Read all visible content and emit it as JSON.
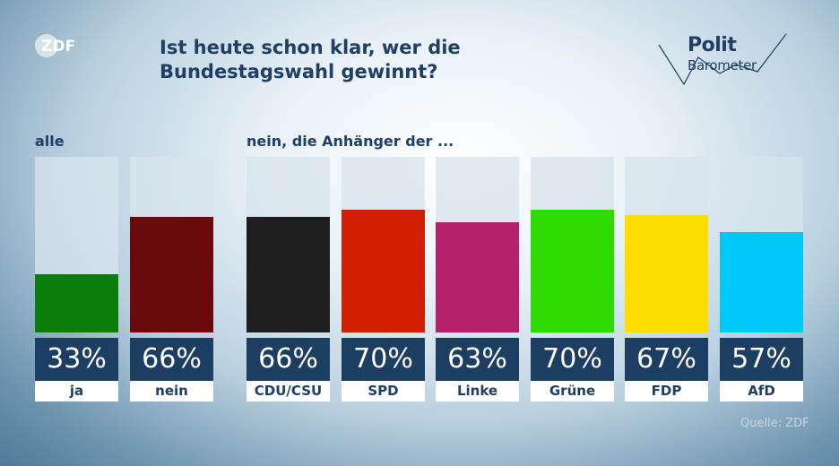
{
  "header": {
    "broadcaster_logo": "ZDF",
    "title": "Ist heute schon klar, wer die Bundestagswahl gewinnt?",
    "series_logo_line1": "Polit",
    "series_logo_line2": "Barometer"
  },
  "groups": {
    "all_label": "alle",
    "supporters_label": "nein, die Anhänger der ..."
  },
  "source": "Quelle: ZDF",
  "chart_data": {
    "type": "bar",
    "title": "Ist heute schon klar, wer die Bundestagswahl gewinnt?",
    "ylim": [
      0,
      100
    ],
    "grid": false,
    "categories": [
      "ja",
      "nein",
      "CDU/CSU",
      "SPD",
      "Linke",
      "Grüne",
      "FDP",
      "AfD"
    ],
    "values": [
      33,
      66,
      66,
      70,
      63,
      70,
      67,
      57
    ],
    "value_labels": [
      "33%",
      "66%",
      "66%",
      "70%",
      "63%",
      "70%",
      "67%",
      "57%"
    ],
    "colors": [
      "#0a7d0a",
      "#6b0a0a",
      "#1e1e1e",
      "#d11f00",
      "#b5206a",
      "#2ddb00",
      "#ffdd00",
      "#00c8f8"
    ],
    "group_labels": [
      "alle",
      "nein, die Anhänger der ..."
    ]
  }
}
